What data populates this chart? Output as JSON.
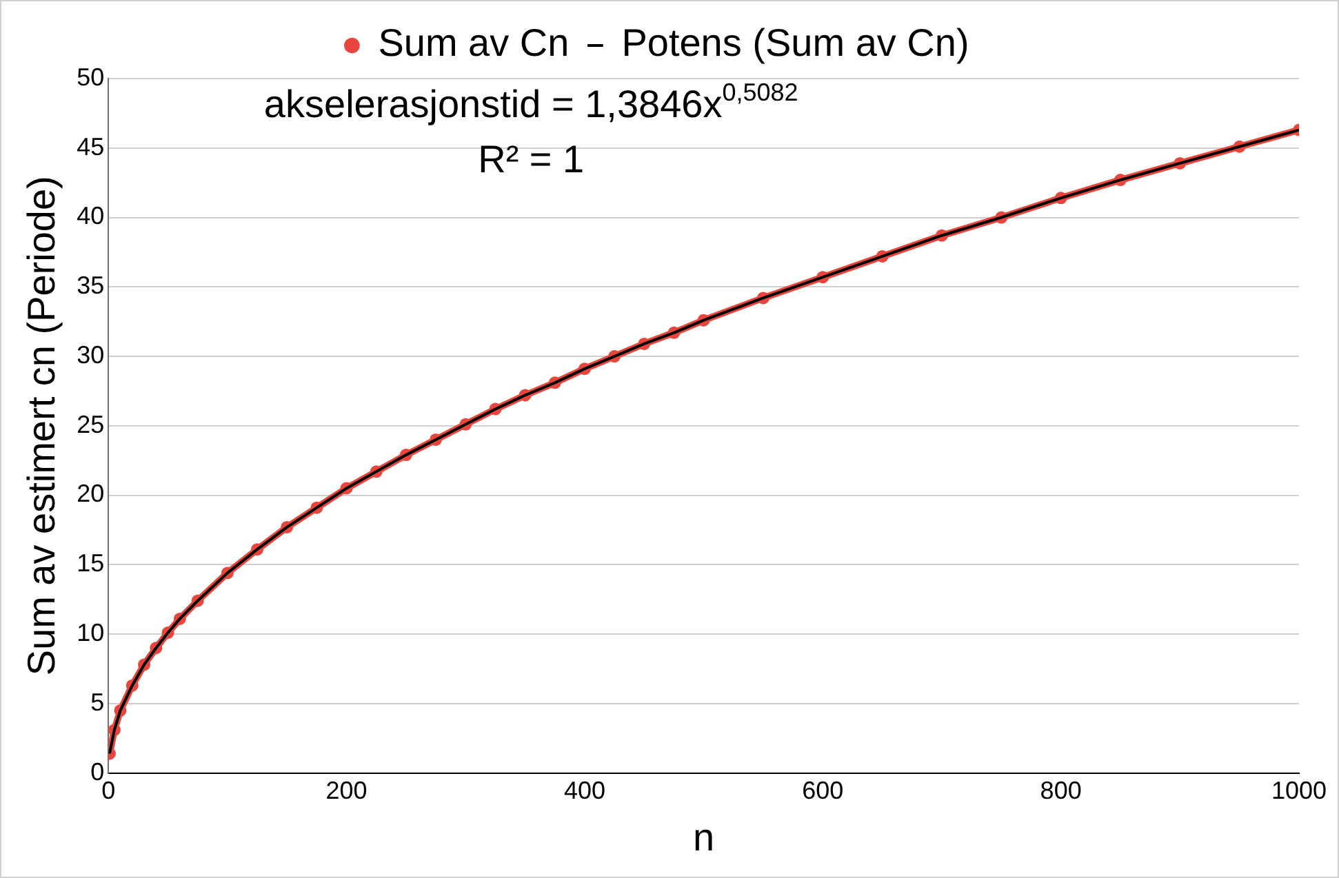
{
  "chart_data": {
    "type": "scatter",
    "xlabel": "n",
    "ylabel": "Sum av estimert cn (Periode)",
    "xlim": [
      0,
      1000
    ],
    "xticks": [
      0,
      200,
      400,
      600,
      800,
      1000
    ],
    "ylim": [
      0,
      50
    ],
    "yticks": [
      0,
      5,
      10,
      15,
      20,
      25,
      30,
      35,
      40,
      45,
      50
    ],
    "grid": "y",
    "legend": "top",
    "annotations": [
      "akselerasjonstid = 1,3846x$^{0,5082}$",
      "R² = 1"
    ],
    "series": [
      {
        "name": "Sum av Cn",
        "color": "#e8453c",
        "marker": "circle",
        "x": [
          1,
          5,
          10,
          20,
          30,
          40,
          50,
          60,
          75,
          100,
          125,
          150,
          175,
          200,
          225,
          250,
          275,
          300,
          325,
          350,
          375,
          400,
          425,
          450,
          475,
          500,
          550,
          600,
          650,
          700,
          750,
          800,
          850,
          900,
          950,
          1000
        ],
        "values": [
          1.4,
          3.1,
          4.5,
          6.3,
          7.8,
          9.0,
          10.1,
          11.1,
          12.4,
          14.4,
          16.1,
          17.7,
          19.1,
          20.5,
          21.7,
          22.9,
          24.0,
          25.1,
          26.2,
          27.2,
          28.1,
          29.1,
          30.0,
          30.9,
          31.7,
          32.6,
          34.2,
          35.7,
          37.2,
          38.7,
          40.0,
          41.4,
          42.7,
          43.9,
          45.1,
          46.3
        ]
      },
      {
        "name": "Potens (Sum av Cn)",
        "type": "line",
        "color": "#000000",
        "marker": "none",
        "line_style": "solid",
        "x": [
          1,
          5,
          10,
          20,
          30,
          40,
          50,
          60,
          75,
          100,
          125,
          150,
          175,
          200,
          225,
          250,
          275,
          300,
          325,
          350,
          375,
          400,
          425,
          450,
          475,
          500,
          550,
          600,
          650,
          700,
          750,
          800,
          850,
          900,
          950,
          1000
        ],
        "values": [
          1.4,
          3.1,
          4.5,
          6.3,
          7.8,
          9.0,
          10.1,
          11.1,
          12.4,
          14.4,
          16.1,
          17.7,
          19.1,
          20.5,
          21.7,
          22.9,
          24.0,
          25.1,
          26.2,
          27.2,
          28.1,
          29.1,
          30.0,
          30.9,
          31.7,
          32.6,
          34.2,
          35.7,
          37.2,
          38.7,
          40.0,
          41.4,
          42.7,
          43.9,
          45.1,
          46.3
        ]
      }
    ]
  }
}
